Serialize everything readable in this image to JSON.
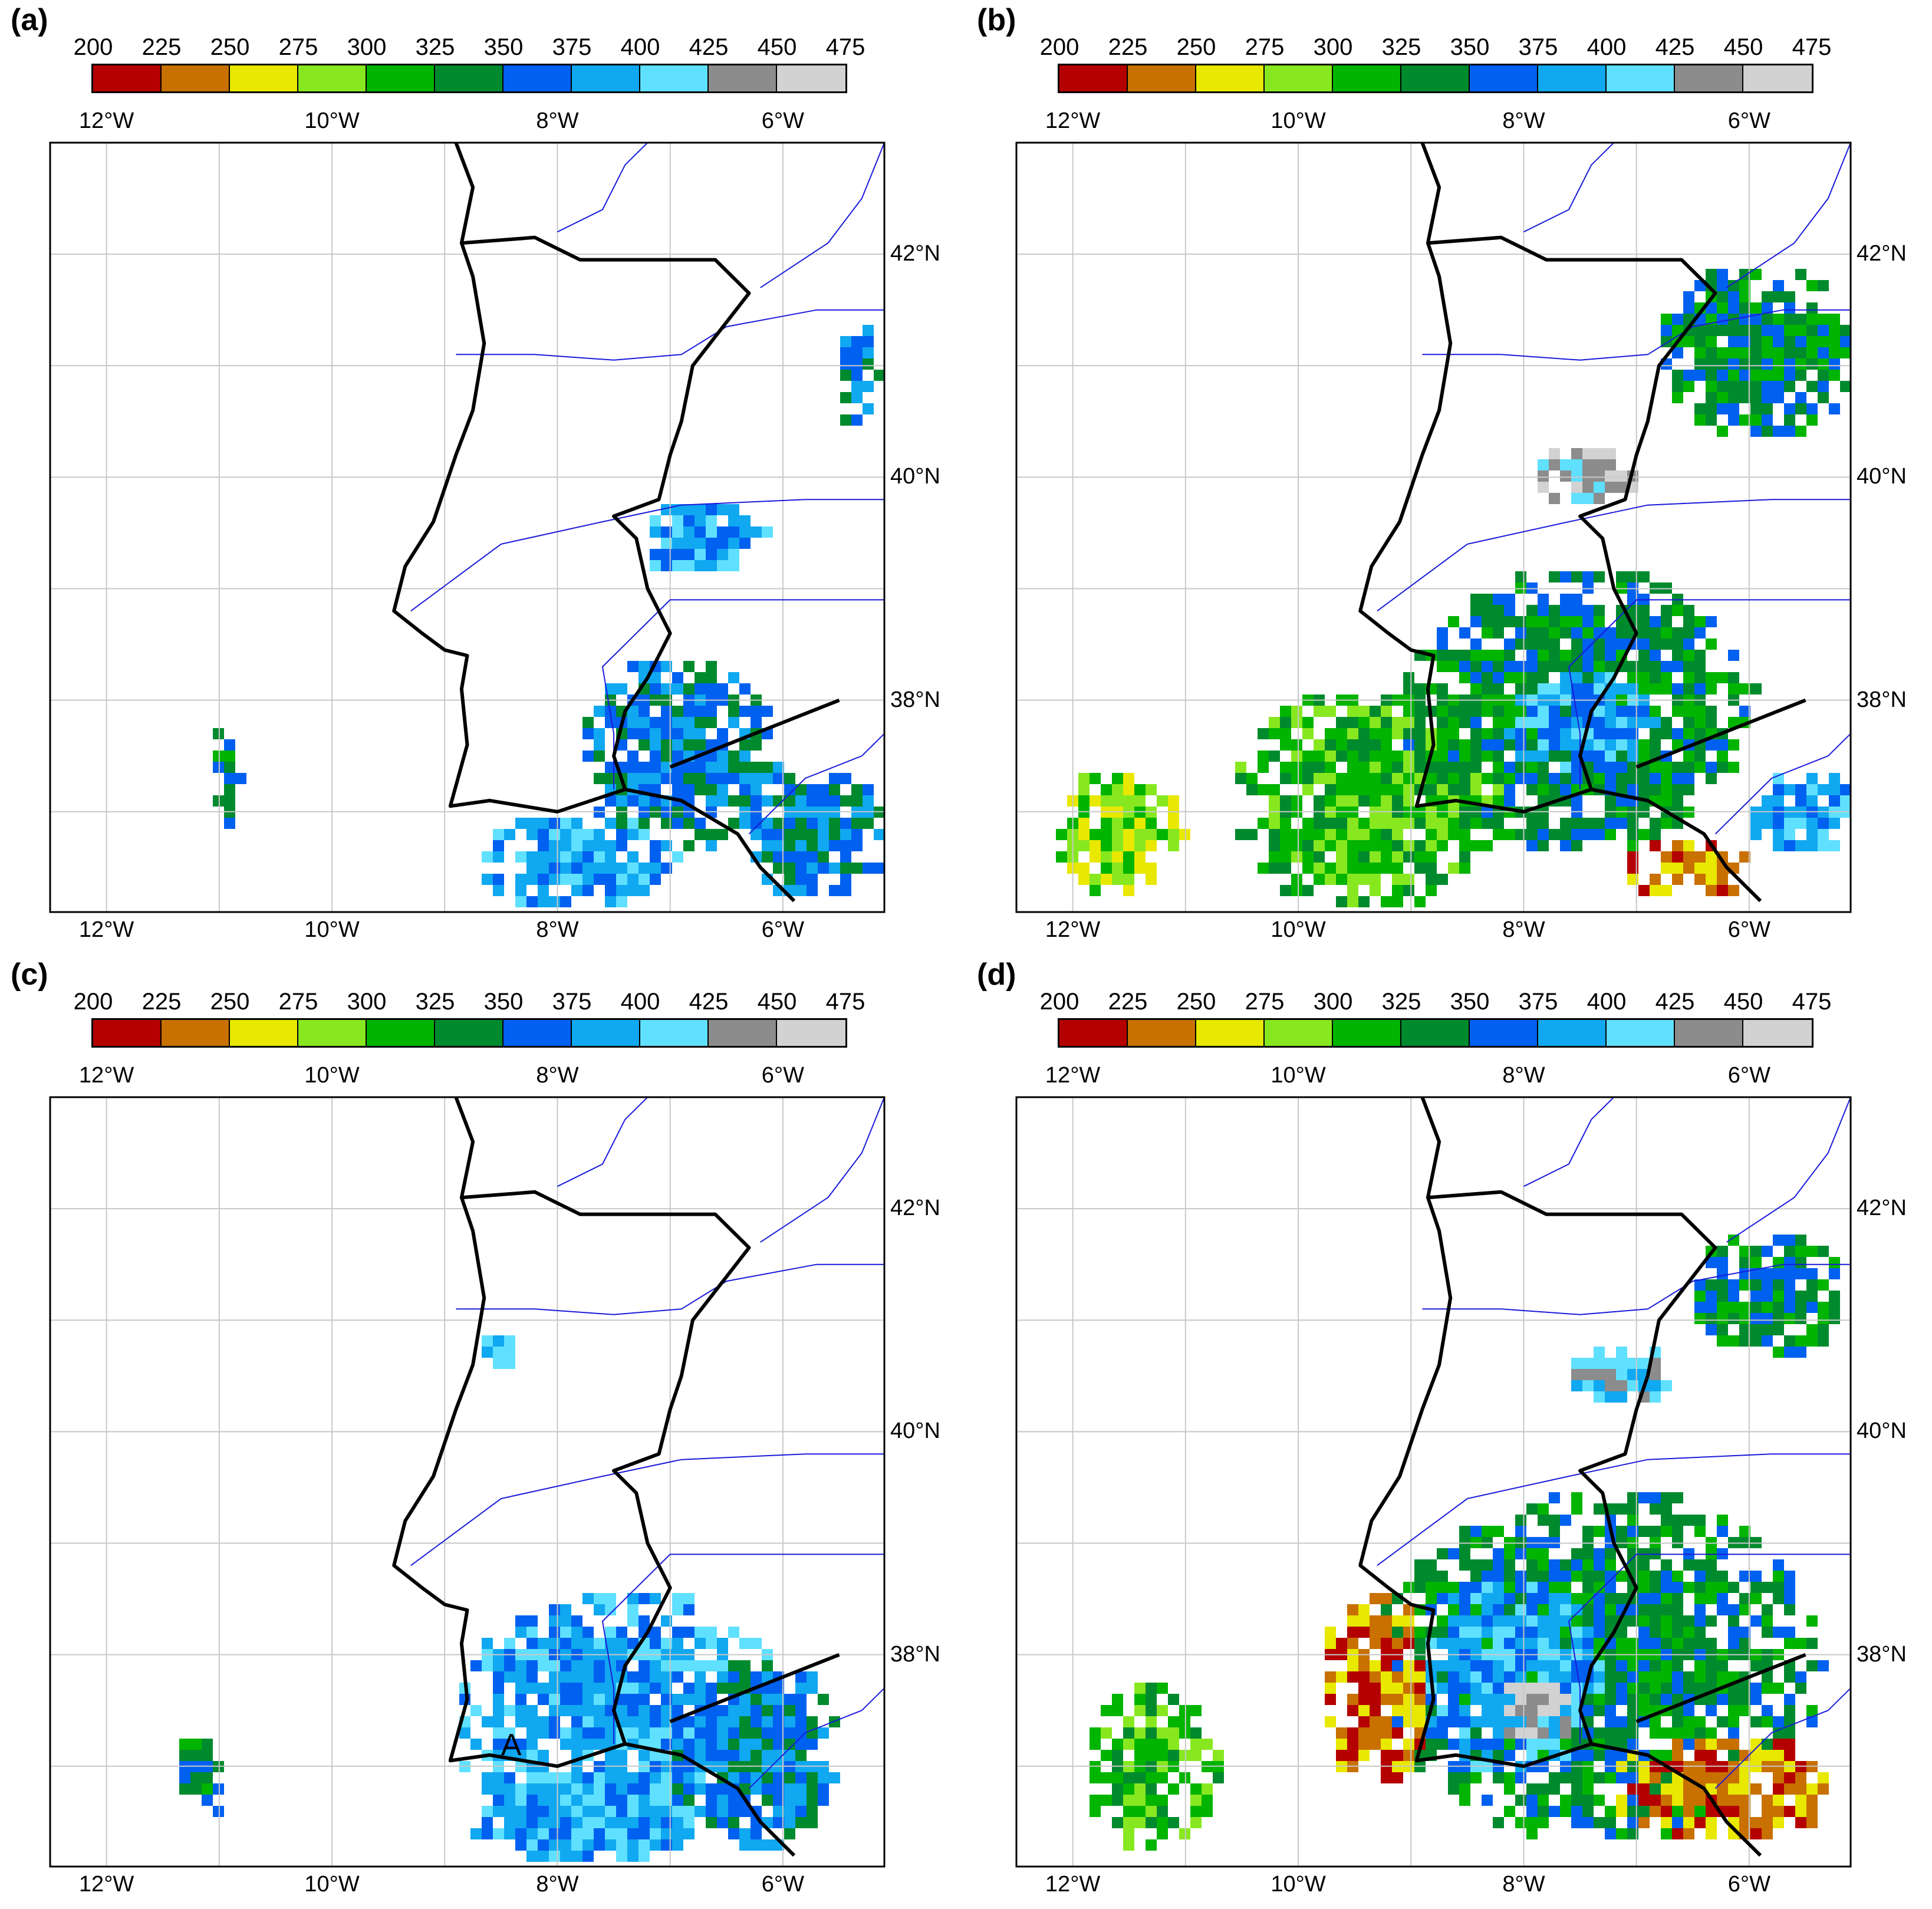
{
  "colorbar": {
    "ticks": [
      "200",
      "225",
      "250",
      "275",
      "300",
      "325",
      "350",
      "375",
      "400",
      "425",
      "450",
      "475"
    ],
    "colors": [
      "#b40000",
      "#c87000",
      "#e8e800",
      "#88e820",
      "#00b400",
      "#008a2e",
      "#0060f0",
      "#10a8f0",
      "#60e0ff",
      "#8c8c8c",
      "#d2d2d2"
    ]
  },
  "axes": {
    "lon_labels": [
      "12°W",
      "10°W",
      "8°W",
      "6°W"
    ],
    "lat_labels": [
      "42°N",
      "40°N",
      "38°N"
    ]
  },
  "panels": [
    {
      "label": "(a)",
      "point_label": ""
    },
    {
      "label": "(b)",
      "point_label": ""
    },
    {
      "label": "(c)",
      "point_label": "A"
    },
    {
      "label": "(d)",
      "point_label": ""
    }
  ],
  "map_fields": {
    "extent_lon": [
      -12.5,
      -5.1
    ],
    "extent_lat": [
      36.1,
      43.0
    ],
    "grid_lon": [
      -12,
      -11,
      -10,
      -9,
      -8,
      -7,
      -6
    ],
    "grid_lat": [
      43,
      42,
      41,
      40,
      39,
      38,
      37
    ],
    "field_patches": [
      [
        {
          "lon": -7.0,
          "lat": 37.6,
          "rx": 0.9,
          "ry": 0.9,
          "bin": 6
        },
        {
          "lon": -7.9,
          "lat": 36.6,
          "rx": 0.9,
          "ry": 0.45,
          "bin": 7
        },
        {
          "lon": -5.8,
          "lat": 36.8,
          "rx": 0.7,
          "ry": 0.6,
          "bin": 6
        },
        {
          "lon": -6.8,
          "lat": 39.5,
          "rx": 0.6,
          "ry": 0.35,
          "bin": 7
        },
        {
          "lon": -5.4,
          "lat": 41.0,
          "rx": 0.2,
          "ry": 0.5,
          "bin": 6
        },
        {
          "lon": -11.0,
          "lat": 37.3,
          "rx": 0.15,
          "ry": 0.5,
          "bin": 5
        }
      ],
      [
        {
          "lon": -7.6,
          "lat": 38.0,
          "rx": 1.6,
          "ry": 1.3,
          "bin": 5
        },
        {
          "lon": -9.5,
          "lat": 37.2,
          "rx": 1.2,
          "ry": 1.0,
          "bin": 4
        },
        {
          "lon": -11.6,
          "lat": 36.8,
          "rx": 0.6,
          "ry": 0.6,
          "bin": 3
        },
        {
          "lon": -7.6,
          "lat": 37.9,
          "rx": 0.7,
          "ry": 0.5,
          "bin": 7
        },
        {
          "lon": -7.5,
          "lat": 40.1,
          "rx": 0.5,
          "ry": 0.3,
          "bin": 9
        },
        {
          "lon": -6.0,
          "lat": 41.2,
          "rx": 0.9,
          "ry": 0.8,
          "bin": 5
        },
        {
          "lon": -5.6,
          "lat": 37.0,
          "rx": 0.5,
          "ry": 0.4,
          "bin": 7
        },
        {
          "lon": -6.6,
          "lat": 36.5,
          "rx": 0.6,
          "ry": 0.3,
          "bin": 1
        }
      ],
      [
        {
          "lon": -7.5,
          "lat": 37.5,
          "rx": 1.5,
          "ry": 1.2,
          "bin": 7
        },
        {
          "lon": -6.3,
          "lat": 37.2,
          "rx": 0.8,
          "ry": 0.9,
          "bin": 6
        },
        {
          "lon": -7.9,
          "lat": 36.6,
          "rx": 1.0,
          "ry": 0.45,
          "bin": 7
        },
        {
          "lon": -11.2,
          "lat": 36.9,
          "rx": 0.25,
          "ry": 0.4,
          "bin": 5
        },
        {
          "lon": -8.6,
          "lat": 40.8,
          "rx": 0.2,
          "ry": 0.2,
          "bin": 7
        }
      ],
      [
        {
          "lon": -7.4,
          "lat": 38.0,
          "rx": 2.0,
          "ry": 1.6,
          "bin": 5
        },
        {
          "lon": -8.2,
          "lat": 37.9,
          "rx": 0.8,
          "ry": 0.9,
          "bin": 7
        },
        {
          "lon": -7.9,
          "lat": 37.5,
          "rx": 0.35,
          "ry": 0.3,
          "bin": 10
        },
        {
          "lon": -6.3,
          "lat": 36.8,
          "rx": 1.0,
          "ry": 0.5,
          "bin": 1
        },
        {
          "lon": -9.4,
          "lat": 37.8,
          "rx": 0.5,
          "ry": 0.9,
          "bin": 1
        },
        {
          "lon": -11.4,
          "lat": 37.0,
          "rx": 0.6,
          "ry": 0.8,
          "bin": 4
        },
        {
          "lon": -7.2,
          "lat": 40.6,
          "rx": 0.5,
          "ry": 0.3,
          "bin": 8
        },
        {
          "lon": -5.9,
          "lat": 41.3,
          "rx": 0.7,
          "ry": 0.6,
          "bin": 5
        }
      ]
    ]
  }
}
